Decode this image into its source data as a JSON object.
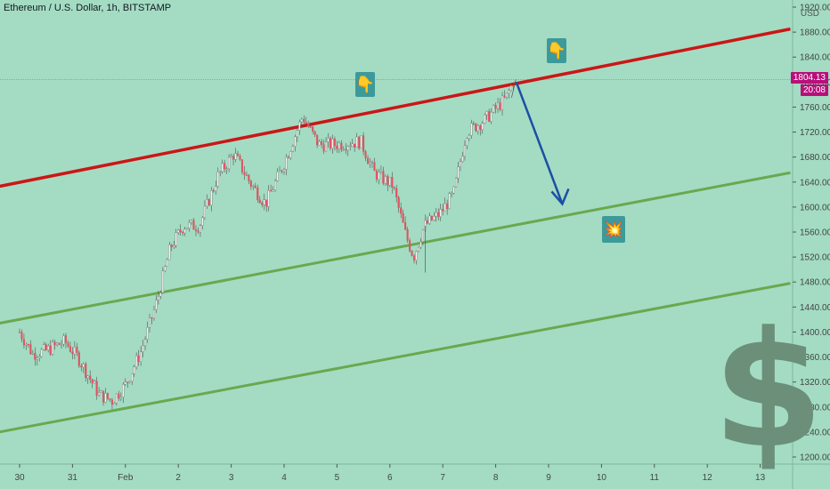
{
  "header": {
    "title": "Ethereum / U.S. Dollar, 1h, BITSTAMP",
    "currency": "USD"
  },
  "badges": {
    "last_price": "1804.13",
    "countdown": "20:08"
  },
  "icons": {
    "pointer_left": "backhand-index-pointing-down",
    "pointer_right": "backhand-index-pointing-down",
    "impact": "collision",
    "dollar": "$"
  },
  "colors": {
    "background": "#a3dcc3",
    "resistance": "#cc1616",
    "support": "#6aa84f",
    "arrow": "#1c4fa6",
    "candle": "#e0525e"
  },
  "chart_data": {
    "type": "line",
    "title": "Ethereum / U.S. Dollar, 1h, BITSTAMP",
    "ylim": [
      1200,
      1920
    ],
    "y_ticks": [
      "1920.00",
      "1880.00",
      "1840.00",
      "1800.00",
      "1760.00",
      "1720.00",
      "1680.00",
      "1640.00",
      "1600.00",
      "1560.00",
      "1520.00",
      "1480.00",
      "1440.00",
      "1400.00",
      "1360.00",
      "1320.00",
      "1280.00",
      "1240.00",
      "1200.00"
    ],
    "x_ticks": [
      "30",
      "31",
      "Feb",
      "2",
      "3",
      "4",
      "5",
      "6",
      "7",
      "8",
      "9",
      "10",
      "11",
      "12",
      "13"
    ],
    "price_path": [
      [
        0,
        1400
      ],
      [
        0.25,
        1365
      ],
      [
        0.5,
        1370
      ],
      [
        0.85,
        1385
      ],
      [
        1.1,
        1360
      ],
      [
        1.5,
        1300
      ],
      [
        1.75,
        1290
      ],
      [
        2.0,
        1315
      ],
      [
        2.3,
        1370
      ],
      [
        2.6,
        1450
      ],
      [
        2.85,
        1535
      ],
      [
        3.1,
        1570
      ],
      [
        3.4,
        1570
      ],
      [
        3.75,
        1650
      ],
      [
        4.05,
        1685
      ],
      [
        4.35,
        1640
      ],
      [
        4.65,
        1605
      ],
      [
        5.0,
        1670
      ],
      [
        5.35,
        1745
      ],
      [
        5.65,
        1700
      ],
      [
        6.0,
        1700
      ],
      [
        6.45,
        1705
      ],
      [
        6.7,
        1655
      ],
      [
        7.05,
        1635
      ],
      [
        7.3,
        1555
      ],
      [
        7.45,
        1520
      ],
      [
        7.65,
        1570
      ],
      [
        7.95,
        1590
      ],
      [
        8.2,
        1620
      ],
      [
        8.45,
        1720
      ],
      [
        8.8,
        1740
      ],
      [
        9.2,
        1775
      ],
      [
        9.35,
        1804.13
      ]
    ],
    "last_price": 1804.13,
    "series": [
      {
        "name": "",
        "kind": "resistance",
        "points": [
          [
            -0.51,
            1631
          ],
          [
            14.57,
            1885
          ]
        ]
      },
      {
        "name": "",
        "kind": "support",
        "points": [
          [
            -0.51,
            1412
          ],
          [
            14.57,
            1655
          ]
        ]
      },
      {
        "name": "",
        "kind": "support",
        "points": [
          [
            -0.51,
            1238
          ],
          [
            14.57,
            1478
          ]
        ]
      }
    ],
    "projection": {
      "from": [
        9.39,
        1800
      ],
      "to": [
        10.26,
        1605
      ]
    },
    "grid": false
  }
}
